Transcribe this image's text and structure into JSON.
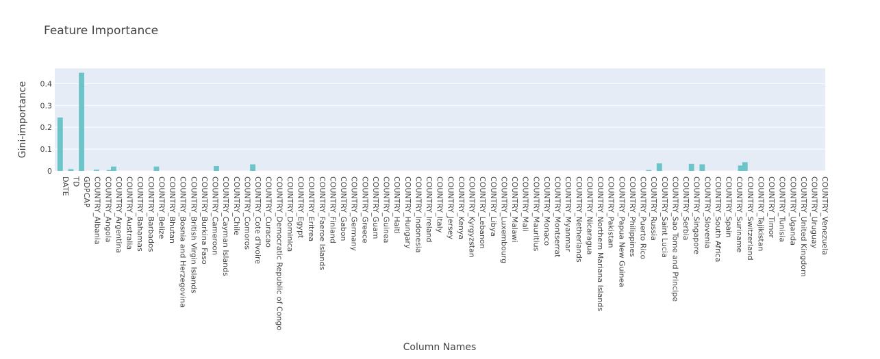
{
  "chart_data": {
    "type": "bar",
    "title": "Feature Importance",
    "xlabel": "Column Names",
    "ylabel": "Gini-importance",
    "ylim": [
      0,
      0.47
    ],
    "yticks": [
      0,
      0.1,
      0.2,
      0.3,
      0.4
    ],
    "ytick_labels": [
      "0",
      "0.1",
      "0.2",
      "0.3",
      "0.4"
    ],
    "grid": true,
    "bar_color": "#6cc3c8",
    "plot_bg": "#e5ecf6",
    "categories": [
      "DATE",
      "TD",
      "GDPCAP",
      "COUNTRY_Albania",
      "COUNTRY_Angola",
      "COUNTRY_Argentina",
      "COUNTRY_Australia",
      "COUNTRY_Bahamas",
      "COUNTRY_Barbados",
      "COUNTRY_Belize",
      "COUNTRY_Bhutan",
      "COUNTRY_Bosnia and Herzegovina",
      "COUNTRY_British Virgin Islands",
      "COUNTRY_Burkina Faso",
      "COUNTRY_Cameroon",
      "COUNTRY_Cayman Islands",
      "COUNTRY_Chile",
      "COUNTRY_Comoros",
      "COUNTRY_Cote d'Ivoire",
      "COUNTRY_Curacao",
      "COUNTRY_Democratic Republic of Congo",
      "COUNTRY_Dominica",
      "COUNTRY_Egypt",
      "COUNTRY_Eritrea",
      "COUNTRY_Faeroe Islands",
      "COUNTRY_Finland",
      "COUNTRY_Gabon",
      "COUNTRY_Germany",
      "COUNTRY_Greece",
      "COUNTRY_Guam",
      "COUNTRY_Guinea",
      "COUNTRY_Haiti",
      "COUNTRY_Hungary",
      "COUNTRY_Indonesia",
      "COUNTRY_Ireland",
      "COUNTRY_Italy",
      "COUNTRY_Jersey",
      "COUNTRY_Kenya",
      "COUNTRY_Kyrgyzstan",
      "COUNTRY_Lebanon",
      "COUNTRY_Libya",
      "COUNTRY_Luxembourg",
      "COUNTRY_Malawi",
      "COUNTRY_Mali",
      "COUNTRY_Mauritius",
      "COUNTRY_Monaco",
      "COUNTRY_Montserrat",
      "COUNTRY_Myanmar",
      "COUNTRY_Netherlands",
      "COUNTRY_Nicaragua",
      "COUNTRY_Northern Mariana Islands",
      "COUNTRY_Pakistan",
      "COUNTRY_Papua New Guinea",
      "COUNTRY_Philippines",
      "COUNTRY_Puerto Rico",
      "COUNTRY_Russia",
      "COUNTRY_Saint Lucia",
      "COUNTRY_Sao Tome and Principe",
      "COUNTRY_Serbia",
      "COUNTRY_Singapore",
      "COUNTRY_Slovenia",
      "COUNTRY_South Africa",
      "COUNTRY_Spain",
      "COUNTRY_Suriname",
      "COUNTRY_Switzerland",
      "COUNTRY_Tajikistan",
      "COUNTRY_Timor",
      "COUNTRY_Tunisia",
      "COUNTRY_Uganda",
      "COUNTRY_United Kingdom",
      "COUNTRY_Uruguay",
      "COUNTRY_Venezuela"
    ],
    "values": [
      0.245,
      0.008,
      0.45,
      0,
      0,
      0.02,
      0,
      0,
      0,
      0,
      0,
      0,
      0,
      0,
      0,
      0,
      0,
      0,
      0.03,
      0,
      0,
      0,
      0,
      0,
      0,
      0,
      0,
      0,
      0,
      0,
      0,
      0,
      0,
      0,
      0,
      0,
      0,
      0,
      0,
      0,
      0,
      0,
      0,
      0,
      0,
      0,
      0,
      0,
      0,
      0,
      0,
      0,
      0,
      0,
      0,
      0,
      0.035,
      0,
      0,
      0.032,
      0.03,
      0,
      0,
      0,
      0.04,
      0,
      0,
      0,
      0,
      0,
      0,
      0
    ],
    "minor_values": [
      {
        "index": 3,
        "offset": 1,
        "value": 0.006
      },
      {
        "index": 5,
        "offset": -1,
        "value": 0.004
      },
      {
        "index": 9,
        "offset": 0,
        "value": 0.02
      },
      {
        "index": 15,
        "offset": -1,
        "value": 0.022
      },
      {
        "index": 55,
        "offset": 0,
        "value": 0.004
      },
      {
        "index": 64,
        "offset": -1,
        "value": 0.025
      }
    ]
  }
}
